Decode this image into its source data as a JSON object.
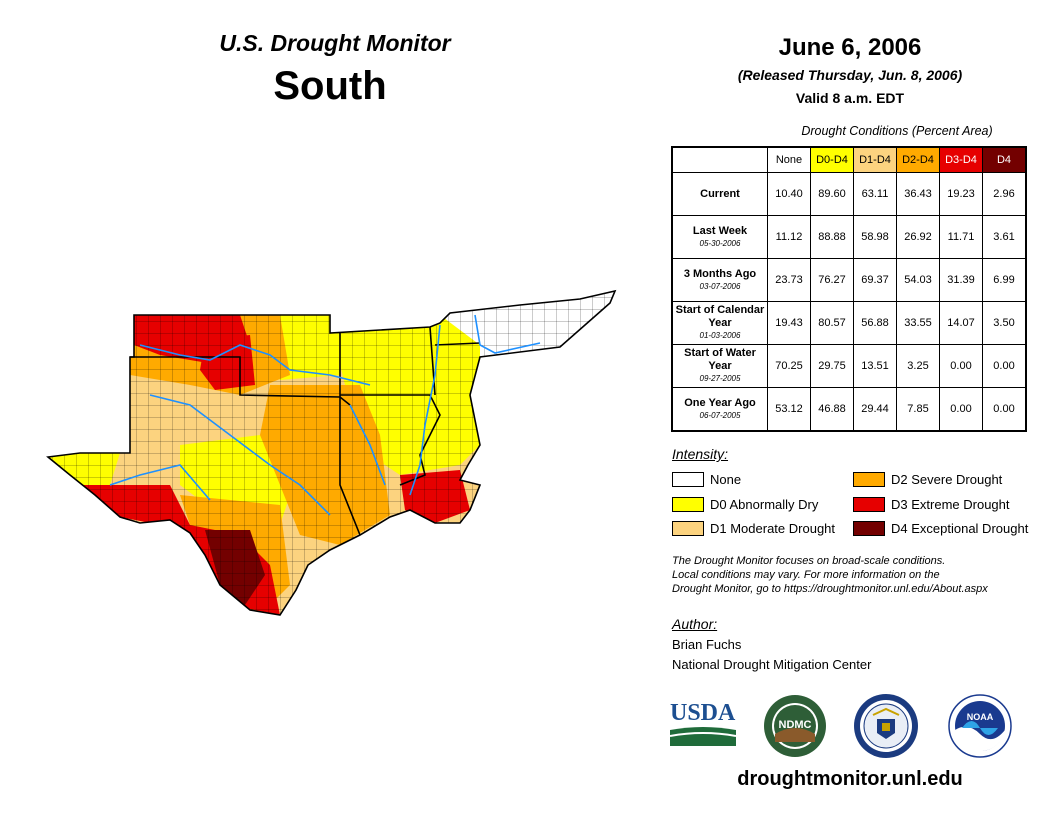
{
  "header": {
    "title": "U.S. Drought Monitor",
    "region": "South",
    "date": "June 6, 2006",
    "released": "(Released Thursday, Jun. 8, 2006)",
    "valid": "Valid 8 a.m. EDT"
  },
  "stats_table": {
    "caption": "Drought Conditions (Percent Area)",
    "columns": [
      "None",
      "D0-D4",
      "D1-D4",
      "D2-D4",
      "D3-D4",
      "D4"
    ],
    "column_colors": [
      "#ffffff",
      "#ffff00",
      "#fcd37f",
      "#ffaa00",
      "#e60000",
      "#730000"
    ],
    "rows": [
      {
        "label": "Current",
        "date": "",
        "values": [
          "10.40",
          "89.60",
          "63.11",
          "36.43",
          "19.23",
          "2.96"
        ]
      },
      {
        "label": "Last Week",
        "date": "05-30-2006",
        "values": [
          "11.12",
          "88.88",
          "58.98",
          "26.92",
          "11.71",
          "3.61"
        ]
      },
      {
        "label": "3 Months Ago",
        "date": "03-07-2006",
        "values": [
          "23.73",
          "76.27",
          "69.37",
          "54.03",
          "31.39",
          "6.99"
        ]
      },
      {
        "label": "Start of Calendar Year",
        "date": "01-03-2006",
        "values": [
          "19.43",
          "80.57",
          "56.88",
          "33.55",
          "14.07",
          "3.50"
        ]
      },
      {
        "label": "Start of Water Year",
        "date": "09-27-2005",
        "values": [
          "70.25",
          "29.75",
          "13.51",
          "3.25",
          "0.00",
          "0.00"
        ]
      },
      {
        "label": "One Year Ago",
        "date": "06-07-2005",
        "values": [
          "53.12",
          "46.88",
          "29.44",
          "7.85",
          "0.00",
          "0.00"
        ]
      }
    ]
  },
  "legend": {
    "title": "Intensity:",
    "items": [
      {
        "label": "None",
        "color": "#ffffff"
      },
      {
        "label": "D0 Abnormally Dry",
        "color": "#ffff00"
      },
      {
        "label": "D1 Moderate Drought",
        "color": "#fcd37f"
      },
      {
        "label": "D2 Severe Drought",
        "color": "#ffaa00"
      },
      {
        "label": "D3 Extreme Drought",
        "color": "#e60000"
      },
      {
        "label": "D4 Exceptional Drought",
        "color": "#730000"
      }
    ]
  },
  "note": {
    "line1": "The Drought Monitor focuses on broad-scale conditions.",
    "line2": "Local conditions may vary. For more information on the",
    "line3": "Drought Monitor, go to https://droughtmonitor.unl.edu/About.aspx"
  },
  "author": {
    "title": "Author:",
    "name": "Brian Fuchs",
    "org": "National Drought Mitigation Center"
  },
  "logos": {
    "usda": "USDA",
    "ndmc": "NDMC",
    "noaa": "NOAA"
  },
  "footer_url": "droughtmonitor.unl.edu"
}
